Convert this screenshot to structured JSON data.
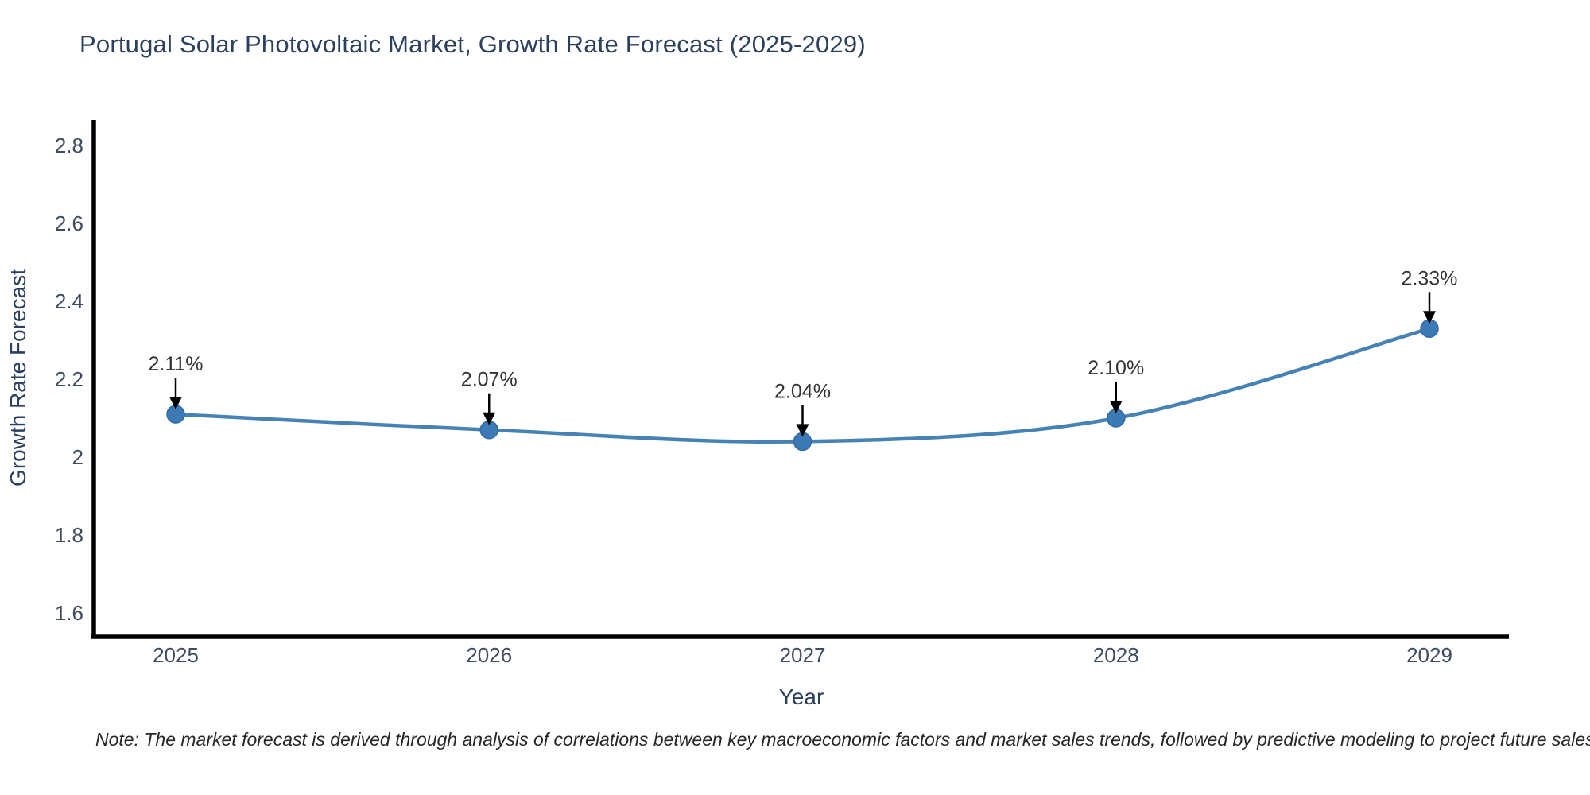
{
  "title": "Portugal Solar Photovoltaic Market, Growth Rate Forecast (2025-2029)",
  "note": "Note: The market forecast is derived through analysis of correlations between key macroeconomic factors and market sales trends, followed by predictive modeling to project future sales",
  "chart_data": {
    "type": "line",
    "title": "Portugal Solar Photovoltaic Market, Growth Rate Forecast (2025-2029)",
    "xlabel": "Year",
    "ylabel": "Growth Rate Forecast",
    "categories": [
      "2025",
      "2026",
      "2027",
      "2028",
      "2029"
    ],
    "series": [
      {
        "name": "Growth Rate Forecast",
        "values": [
          2.11,
          2.07,
          2.04,
          2.1,
          2.33
        ],
        "point_labels": [
          "2.11%",
          "2.07%",
          "2.04%",
          "2.10%",
          "2.33%"
        ]
      }
    ],
    "ylim": [
      1.55,
      2.86
    ],
    "yticks": [
      1.6,
      1.8,
      2,
      2.2,
      2.4,
      2.6,
      2.8
    ],
    "line_shape": "spline",
    "grid": false,
    "legend": "none",
    "annotation_style": "value label with down arrow to marker",
    "colors": {
      "line": "#4682b4",
      "marker_fill": "#3c7ab5",
      "marker_edge": "#2f6ba6",
      "axis_line": "#000000",
      "tick_text": "#3f4b63",
      "axis_title_text": "#2b3f5f",
      "annotation_text": "#333333",
      "annotation_arrow": "#000000",
      "background": "#ffffff"
    }
  }
}
